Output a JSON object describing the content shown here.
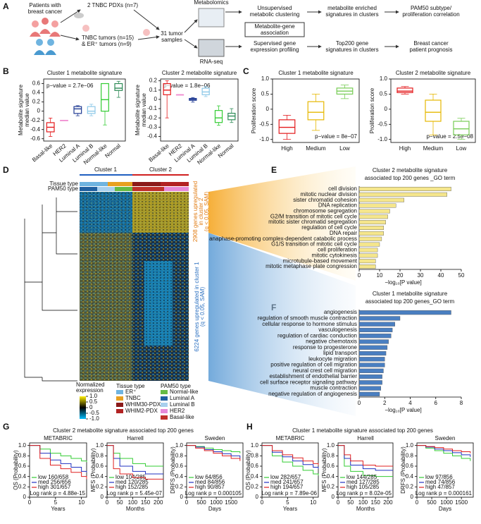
{
  "panel_labels": [
    "A",
    "B",
    "C",
    "D",
    "E",
    "F",
    "G",
    "H"
  ],
  "diagram": {
    "patients": [
      "Patients with",
      "breast cancer"
    ],
    "pdx": "2 TNBC PDXs (n=7)",
    "tumors": [
      "TNBC tumors (n=15)",
      "& ER⁺ tumors (n=9)"
    ],
    "samples": [
      "31 tumor",
      "samples"
    ],
    "metabolomics": "Metabolomics",
    "rnaseq": "RNA-seq",
    "unsupervised": [
      "Unsupervised",
      "metabolic clustering"
    ],
    "association": [
      "Metabolite-gene",
      "association"
    ],
    "supervised": [
      "Supervised gene",
      "expression profiling"
    ],
    "enriched": [
      "metabolite enriched",
      "signatures in clusters"
    ],
    "top200": [
      "Top200 gene",
      "signatures in clusters"
    ],
    "pam50": [
      "PAM50 subtype/",
      "proliferation correlation"
    ],
    "prognosis": [
      "Breast cancer",
      "patient prognosis"
    ]
  },
  "heatmap": {
    "clusters": [
      "Cluster 1",
      "Cluster 2"
    ],
    "row_labels": [
      "Tissue type",
      "PAM50 type"
    ],
    "up2": [
      "2908 genes upregulated",
      "in cluster 2",
      "(q < 0.05, SAM)"
    ],
    "up1": [
      "6224 genes upregulated in cluster 1",
      "(q < 0.05, SAM)"
    ],
    "legend_title": [
      "Normalized",
      "expression"
    ],
    "scale_lim": [
      -1,
      1
    ],
    "scale_ticks": [
      {
        "value": 1,
        "label": "1.0"
      },
      0.5,
      0,
      -0.5,
      {
        "value": -1,
        "label": "-1.0"
      }
    ],
    "tissue_title": "Tissue type",
    "tissue": [
      {
        "name": "ER⁺",
        "color": "#6fb4e0"
      },
      {
        "name": "TNBC",
        "color": "#e8a020"
      },
      {
        "name": "WHIM30-PDX",
        "color": "#8b1a1a"
      },
      {
        "name": "WHIM2-PDX",
        "color": "#b22222"
      }
    ],
    "pam50_title": "PAM50 type",
    "pam50": [
      {
        "name": "Normal-like",
        "color": "#66bb44"
      },
      {
        "name": "Luminal A",
        "color": "#2060a0"
      },
      {
        "name": "Luminal B",
        "color": "#a8d0ee"
      },
      {
        "name": "HER2",
        "color": "#e68ad8"
      },
      {
        "name": "Basal-like",
        "color": "#c0302a"
      }
    ]
  },
  "km_titles": [
    "Cluster 2 metabolite signature associated top 200 genes",
    "Cluster 1 metabolite signature associated top 200 genes"
  ],
  "chart_data": [
    {
      "type": "box",
      "title": "Cluster 1 metabolite signature",
      "ylabel": [
        "Metabolite signature",
        "median value"
      ],
      "annotation": "p−value = 2.7e−06",
      "categories": [
        "Basal-like",
        "HER2",
        "Luminal A",
        "Luminal B",
        "Normal-like",
        "Normal"
      ],
      "colors": [
        "#e41a1c",
        "#f08bd0",
        "#1f3a93",
        "#8cc8e8",
        "#33cc33",
        "#2e8b57"
      ],
      "boxes": [
        {
          "min": -0.55,
          "q1": -0.45,
          "median": -0.35,
          "q3": -0.25,
          "max": -0.15
        },
        {
          "min": -0.2,
          "q1": -0.2,
          "median": -0.2,
          "q3": -0.2,
          "max": -0.2
        },
        {
          "min": -0.1,
          "q1": -0.05,
          "median": 0.05,
          "q3": 0.1,
          "max": 0.12
        },
        {
          "min": -0.1,
          "q1": -0.05,
          "median": 0,
          "q3": 0.1,
          "max": 0.15
        },
        {
          "min": -0.3,
          "q1": 0,
          "median": 0.25,
          "q3": 0.6,
          "max": 0.6
        },
        {
          "min": 0.3,
          "q1": 0.45,
          "median": 0.5,
          "q3": 0.6,
          "max": 0.65
        }
      ],
      "ylim": [
        -0.65,
        0.7
      ],
      "yticks": [
        0.6,
        0.4,
        0.2,
        0,
        -0.2,
        -0.4,
        -0.6
      ]
    },
    {
      "type": "box",
      "title": "Cluster 2 metabolite signature",
      "ylabel": [
        "Metabolite signature",
        "median value"
      ],
      "annotation": "p−value = 1.8e−06",
      "categories": [
        "Basal-like",
        "HER2",
        "Luminal A",
        "Luminal B",
        "Normal-like",
        "Normal"
      ],
      "colors": [
        "#e41a1c",
        "#f08bd0",
        "#1f3a93",
        "#8cc8e8",
        "#33cc33",
        "#2e8b57"
      ],
      "boxes": [
        {
          "min": -0.2,
          "q1": 0.05,
          "median": 0.1,
          "q3": 0.17,
          "max": 0.2
        },
        {
          "min": 0.05,
          "q1": 0.05,
          "median": 0.05,
          "q3": 0.05,
          "max": 0.05
        },
        {
          "min": -0.03,
          "q1": -0.01,
          "median": 0,
          "q3": 0.01,
          "max": 0.02
        },
        {
          "min": 0.03,
          "q1": 0.05,
          "median": 0.08,
          "q3": 0.12,
          "max": 0.14
        },
        {
          "min": -0.28,
          "q1": -0.25,
          "median": -0.2,
          "q3": -0.12,
          "max": -0.07
        },
        {
          "min": -0.25,
          "q1": -0.22,
          "median": -0.18,
          "q3": -0.15,
          "max": -0.1
        }
      ],
      "ylim": [
        -0.45,
        0.22
      ],
      "yticks": [
        0.2,
        0.1,
        0,
        -0.1,
        -0.2,
        -0.3,
        -0.4
      ]
    },
    {
      "type": "box",
      "title": "Cluster 1 metabolite signature",
      "ylabel": [
        "Proliferation score"
      ],
      "annotation": "p−value = 8e−07",
      "categories": [
        "High",
        "Medium",
        "Low"
      ],
      "colors": [
        "#e41a1c",
        "#e6b800",
        "#77cc55"
      ],
      "boxes": [
        {
          "min": -1.0,
          "q1": -0.8,
          "median": -0.6,
          "q3": -0.35,
          "max": -0.2
        },
        {
          "min": -0.7,
          "q1": -0.35,
          "median": -0.1,
          "q3": 0.25,
          "max": 0.5
        },
        {
          "min": 0.35,
          "q1": 0.5,
          "median": 0.6,
          "q3": 0.7,
          "max": 0.8
        }
      ],
      "ylim": [
        -1.1,
        1.0
      ],
      "yticks": [
        {
          "value": 1,
          "label": "1.0"
        },
        0.5,
        0,
        -0.5,
        {
          "value": -1,
          "label": "-1.0"
        }
      ]
    },
    {
      "type": "box",
      "title": "Cluster 2 metabolite signature",
      "ylabel": [
        "Proliferation score"
      ],
      "annotation": "p−value = 2.5e−08",
      "categories": [
        "High",
        "Medium",
        "Low"
      ],
      "colors": [
        "#e41a1c",
        "#e6b800",
        "#77cc55"
      ],
      "boxes": [
        {
          "min": 0.5,
          "q1": 0.55,
          "median": 0.6,
          "q3": 0.7,
          "max": 0.75
        },
        {
          "min": -0.85,
          "q1": -0.4,
          "median": -0.1,
          "q3": 0.3,
          "max": 0.5
        },
        {
          "min": -1.0,
          "q1": -0.85,
          "median": -0.65,
          "q3": -0.4,
          "max": -0.3
        }
      ],
      "ylim": [
        -1.1,
        1.0
      ],
      "yticks": [
        {
          "value": 1,
          "label": "1.0"
        },
        0.5,
        0,
        -0.5,
        {
          "value": -1,
          "label": "-1.0"
        }
      ]
    },
    {
      "type": "barh",
      "title": [
        "Cluster 2 metabolite signature",
        "associated top 200 genes _GO term"
      ],
      "xlabel": "−log₁₀[P value]",
      "color": "#f5e68c",
      "categories": [
        "cell division",
        "mitotic nuclear division",
        "sister chromatid cohesion",
        "DNA replication",
        "chromosome segregation",
        "G2/M transition of mitotic cell cycle",
        "mitotic sister chromatid segregation",
        "regulation of cell cycle",
        "DNA repair",
        "anaphase-promoting complex-dependent catabolic process",
        "G1/S transition of mitotic cell cycle",
        "cell proliferation",
        "mitotic cytokinesis",
        "microtubule-based movement",
        "mitotic metaphase plate congression"
      ],
      "values": [
        45,
        43,
        22,
        18,
        15,
        14,
        13,
        12,
        12,
        11,
        10,
        9,
        9,
        8,
        8
      ],
      "xlim": [
        0,
        50
      ],
      "xticks": [
        0,
        10,
        20,
        30,
        40,
        50
      ]
    },
    {
      "type": "barh",
      "title": [
        "Cluster 1 metabolite signature",
        "associated top 200 genes_GO term"
      ],
      "xlabel": "−log₁₀[P value]",
      "color": "#4a7fc1",
      "categories": [
        "angiogenesis",
        "regulation of smooth muscle contraction",
        "cellular response to hormone stimulus",
        "vasculogenesis",
        "regulation of cardiac conduction",
        "negative chemotaxis",
        "response to progesterone",
        "lipid transport",
        "leukocyte migration",
        "positive regulation of cell migration",
        "neural crest cell migration",
        "establishment of endothelial barrier",
        "cell surface receptor signaling pathway",
        "muscle contraction",
        "negative regulation of angiogenesis"
      ],
      "values": [
        7.2,
        3.2,
        2.8,
        2.6,
        2.5,
        2.3,
        2.2,
        2.1,
        2.0,
        2.0,
        1.9,
        1.8,
        1.8,
        1.7,
        1.6
      ],
      "xlim": [
        0,
        8
      ],
      "xticks": [
        0,
        2,
        4,
        6,
        8
      ]
    },
    {
      "type": "km",
      "title": "METABRIC",
      "ylabel": "OS (Probability)",
      "xlabel": "Years",
      "pvalue": "Log rank p = 4.88e-15",
      "x": [
        0,
        2,
        4,
        6,
        8,
        10,
        11
      ],
      "xlim": [
        0,
        11
      ],
      "xticks": [
        0,
        5,
        10
      ],
      "ylim": [
        0,
        1.05
      ],
      "yticks": [
        0,
        0.2,
        0.4,
        0.6,
        0.8,
        {
          "value": 1,
          "label": "1.0"
        }
      ],
      "series": [
        {
          "name": "low 160/658",
          "color": "#33cc33",
          "values": [
            1,
            0.93,
            0.85,
            0.8,
            0.75,
            0.7,
            0.68
          ]
        },
        {
          "name": "med 256/656",
          "color": "#2030c0",
          "values": [
            1,
            0.85,
            0.72,
            0.65,
            0.58,
            0.5,
            0.48
          ]
        },
        {
          "name": "high 301/657",
          "color": "#e02020",
          "values": [
            1,
            0.75,
            0.62,
            0.55,
            0.48,
            0.4,
            0.35
          ]
        }
      ]
    },
    {
      "type": "km",
      "title": "Harrell",
      "ylabel": "MFS (Probability)",
      "xlabel": "Months",
      "pvalue": "Log rank p = 5.45e-07",
      "x": [
        0,
        25,
        50,
        100,
        150,
        200,
        220
      ],
      "xlim": [
        0,
        220
      ],
      "xticks": [
        0,
        50,
        100,
        150,
        200
      ],
      "ylim": [
        0,
        1.05
      ],
      "yticks": [
        0,
        0.2,
        0.4,
        0.6,
        0.8,
        {
          "value": 1,
          "label": "1.0"
        }
      ],
      "series": [
        {
          "name": "low 104/285",
          "color": "#33cc33",
          "values": [
            1,
            0.85,
            0.75,
            0.65,
            0.6,
            0.6,
            0.6
          ]
        },
        {
          "name": "med 120/285",
          "color": "#2030c0",
          "values": [
            1,
            0.75,
            0.6,
            0.5,
            0.45,
            0.45,
            0.45
          ]
        },
        {
          "name": "high 152/285",
          "color": "#e02020",
          "values": [
            1,
            0.55,
            0.45,
            0.38,
            0.35,
            0.35,
            0.35
          ]
        }
      ]
    },
    {
      "type": "km",
      "title": "Sweden",
      "ylabel": "DRFS (Probability)",
      "xlabel": "Days",
      "pvalue": "Log rank p = 0.000105",
      "x": [
        0,
        300,
        600,
        900,
        1200,
        1500,
        1800
      ],
      "xlim": [
        0,
        1900
      ],
      "xticks": [
        0,
        500,
        1000,
        1500
      ],
      "ylim": [
        0,
        1.05
      ],
      "yticks": [
        0,
        0.2,
        0.4,
        0.6,
        0.8,
        {
          "value": 1,
          "label": "1.0"
        }
      ],
      "series": [
        {
          "name": "low 64/856",
          "color": "#33cc33",
          "values": [
            1,
            0.98,
            0.95,
            0.92,
            0.9,
            0.88,
            0.85
          ]
        },
        {
          "name": "med 84/856",
          "color": "#2030c0",
          "values": [
            1,
            0.97,
            0.92,
            0.88,
            0.84,
            0.8,
            0.75
          ]
        },
        {
          "name": "high 90/857",
          "color": "#e02020",
          "values": [
            1,
            0.95,
            0.9,
            0.85,
            0.8,
            0.75,
            0.7
          ]
        }
      ]
    },
    {
      "type": "km",
      "title": "METABRIC",
      "ylabel": "OS (Probability)",
      "xlabel": "Years",
      "pvalue": "Log rank p = 7.89e-06",
      "x": [
        0,
        2,
        4,
        6,
        8,
        10,
        11
      ],
      "xlim": [
        0,
        11
      ],
      "xticks": [
        0,
        5,
        10
      ],
      "ylim": [
        0,
        1.05
      ],
      "yticks": [
        0,
        0.2,
        0.4,
        0.6,
        0.8,
        {
          "value": 1,
          "label": "1.0"
        }
      ],
      "series": [
        {
          "name": "low 282/657",
          "color": "#33cc33",
          "values": [
            1,
            0.8,
            0.68,
            0.6,
            0.52,
            0.45,
            0.42
          ]
        },
        {
          "name": "med 241/657",
          "color": "#2030c0",
          "values": [
            1,
            0.87,
            0.78,
            0.7,
            0.63,
            0.58,
            0.55
          ]
        },
        {
          "name": "high 194/657",
          "color": "#e02020",
          "values": [
            1,
            0.9,
            0.82,
            0.76,
            0.7,
            0.65,
            0.62
          ]
        }
      ]
    },
    {
      "type": "km",
      "title": "Harrell",
      "ylabel": "MFS (Probability)",
      "xlabel": "Months",
      "pvalue": "Log rank p = 8.02e-05",
      "x": [
        0,
        25,
        50,
        100,
        150,
        200,
        220
      ],
      "xlim": [
        0,
        220
      ],
      "xticks": [
        0,
        50,
        100,
        150,
        200
      ],
      "ylim": [
        0,
        1.05
      ],
      "yticks": [
        0,
        0.2,
        0.4,
        0.6,
        0.8,
        {
          "value": 1,
          "label": "1.0"
        }
      ],
      "series": [
        {
          "name": "low 144/285",
          "color": "#33cc33",
          "values": [
            1,
            0.6,
            0.5,
            0.42,
            0.4,
            0.4,
            0.4
          ]
        },
        {
          "name": "med 127/285",
          "color": "#2030c0",
          "values": [
            1,
            0.75,
            0.62,
            0.55,
            0.52,
            0.52,
            0.52
          ]
        },
        {
          "name": "high 105/285",
          "color": "#e02020",
          "values": [
            1,
            0.82,
            0.7,
            0.62,
            0.6,
            0.6,
            0.6
          ]
        }
      ]
    },
    {
      "type": "km",
      "title": "Sweden",
      "ylabel": "DRFS (Probability)",
      "xlabel": "Days",
      "pvalue": "Log rank p = 0.000161",
      "x": [
        0,
        300,
        600,
        900,
        1200,
        1500,
        1800
      ],
      "xlim": [
        0,
        1900
      ],
      "xticks": [
        0,
        500,
        1000,
        1500
      ],
      "ylim": [
        0,
        1.05
      ],
      "yticks": [
        0,
        0.2,
        0.4,
        0.6,
        0.8,
        {
          "value": 1,
          "label": "1.0"
        }
      ],
      "series": [
        {
          "name": "low 97/856",
          "color": "#33cc33",
          "values": [
            1,
            0.95,
            0.9,
            0.85,
            0.8,
            0.75,
            0.7
          ]
        },
        {
          "name": "med 74/856",
          "color": "#2030c0",
          "values": [
            1,
            0.97,
            0.93,
            0.9,
            0.86,
            0.82,
            0.78
          ]
        },
        {
          "name": "high 47/857",
          "color": "#e02020",
          "values": [
            1,
            0.98,
            0.96,
            0.93,
            0.9,
            0.88,
            0.85
          ]
        }
      ]
    }
  ]
}
